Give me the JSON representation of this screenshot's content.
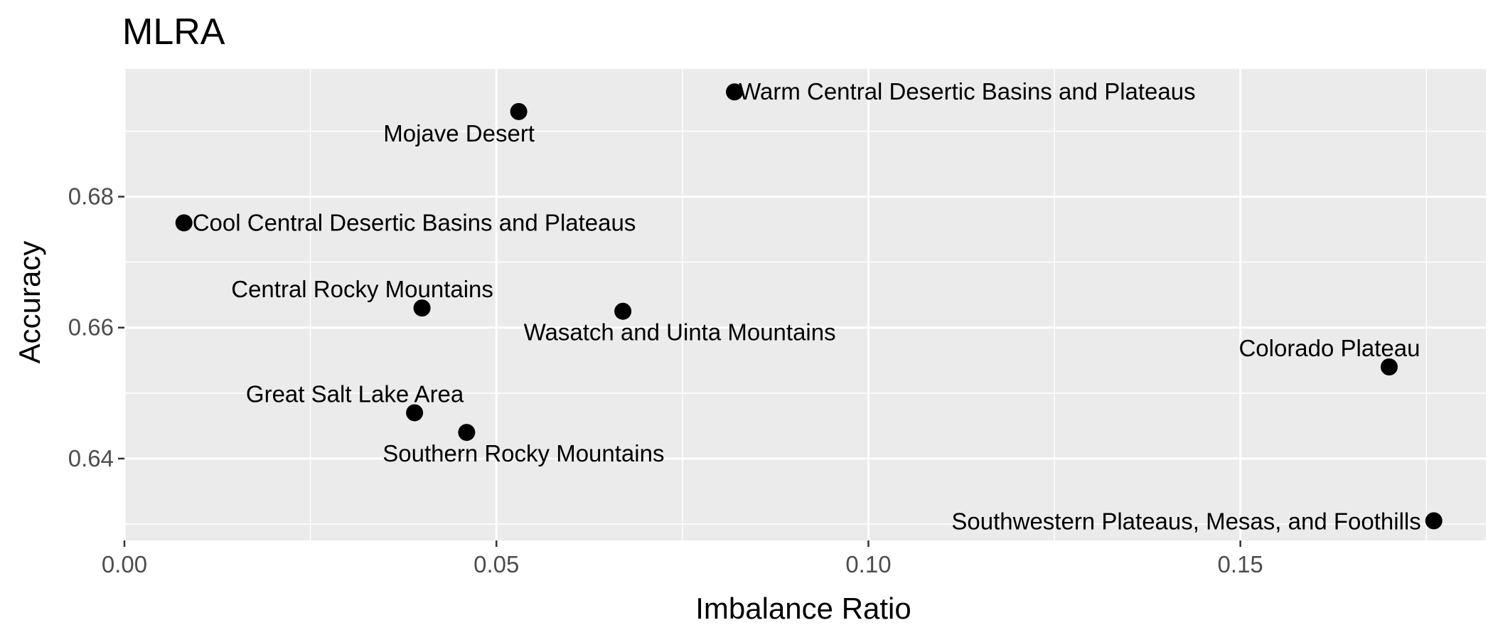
{
  "chart_data": {
    "type": "scatter",
    "title": "MLRA",
    "xlabel": "Imbalance Ratio",
    "ylabel": "Accuracy",
    "xlim": [
      0.0,
      0.183
    ],
    "ylim": [
      0.6275,
      0.6995
    ],
    "x_ticks": [
      0.0,
      0.05,
      0.1,
      0.15
    ],
    "x_tick_labels": [
      "0.00",
      "0.05",
      "0.10",
      "0.15"
    ],
    "y_ticks": [
      0.64,
      0.66,
      0.68
    ],
    "y_tick_labels": [
      "0.64",
      "0.66",
      "0.68"
    ],
    "grid": true,
    "legend": "none",
    "colors": {
      "panel_background": "#ebebeb",
      "grid": "#ffffff",
      "point": "#000000",
      "tick_label": "#4d4d4d"
    },
    "points": [
      {
        "label": "Warm Central Desertic Basins and Plateaus",
        "x": 0.082,
        "y": 0.696
      },
      {
        "label": "Mojave Desert",
        "x": 0.053,
        "y": 0.693
      },
      {
        "label": "Cool Central Desertic Basins and Plateaus",
        "x": 0.008,
        "y": 0.676
      },
      {
        "label": "Central Rocky Mountains",
        "x": 0.04,
        "y": 0.663
      },
      {
        "label": "Wasatch and Uinta Mountains",
        "x": 0.067,
        "y": 0.6625
      },
      {
        "label": "Colorado Plateau",
        "x": 0.17,
        "y": 0.654
      },
      {
        "label": "Great Salt Lake Area",
        "x": 0.039,
        "y": 0.647
      },
      {
        "label": "Southern Rocky Mountains",
        "x": 0.046,
        "y": 0.644
      },
      {
        "label": "Southwestern Plateaus, Mesas, and Foothills",
        "x": 0.176,
        "y": 0.6305
      }
    ]
  }
}
